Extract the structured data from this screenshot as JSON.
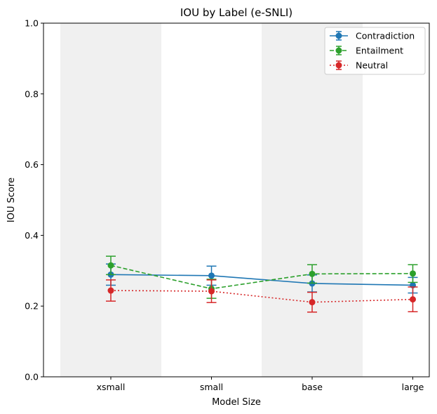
{
  "chart_data": {
    "type": "line",
    "title": "IOU by Label (e-SNLI)",
    "xlabel": "Model Size",
    "ylabel": "IOU Score",
    "categories": [
      "xsmall",
      "small",
      "base",
      "large"
    ],
    "ylim": [
      0,
      1
    ],
    "yticks": [
      "0.0",
      "0.2",
      "0.4",
      "0.6",
      "0.8",
      "1.0"
    ],
    "shaded_categories": [
      "xsmall",
      "base"
    ],
    "legend_position": "top-right",
    "series": [
      {
        "name": "Contradiction",
        "color": "#1f77b4",
        "dash": "solid",
        "values": [
          0.289,
          0.286,
          0.264,
          0.259
        ],
        "err_low": [
          0.259,
          0.259,
          0.24,
          0.237
        ],
        "err_high": [
          0.319,
          0.313,
          0.288,
          0.281
        ]
      },
      {
        "name": "Entailment",
        "color": "#2ca02c",
        "dash": "dashed",
        "values": [
          0.315,
          0.249,
          0.291,
          0.292
        ],
        "err_low": [
          0.289,
          0.222,
          0.265,
          0.267
        ],
        "err_high": [
          0.341,
          0.276,
          0.317,
          0.317
        ]
      },
      {
        "name": "Neutral",
        "color": "#d62728",
        "dash": "dotted",
        "values": [
          0.244,
          0.242,
          0.211,
          0.219
        ],
        "err_low": [
          0.214,
          0.21,
          0.183,
          0.184
        ],
        "err_high": [
          0.274,
          0.274,
          0.239,
          0.254
        ]
      }
    ]
  }
}
